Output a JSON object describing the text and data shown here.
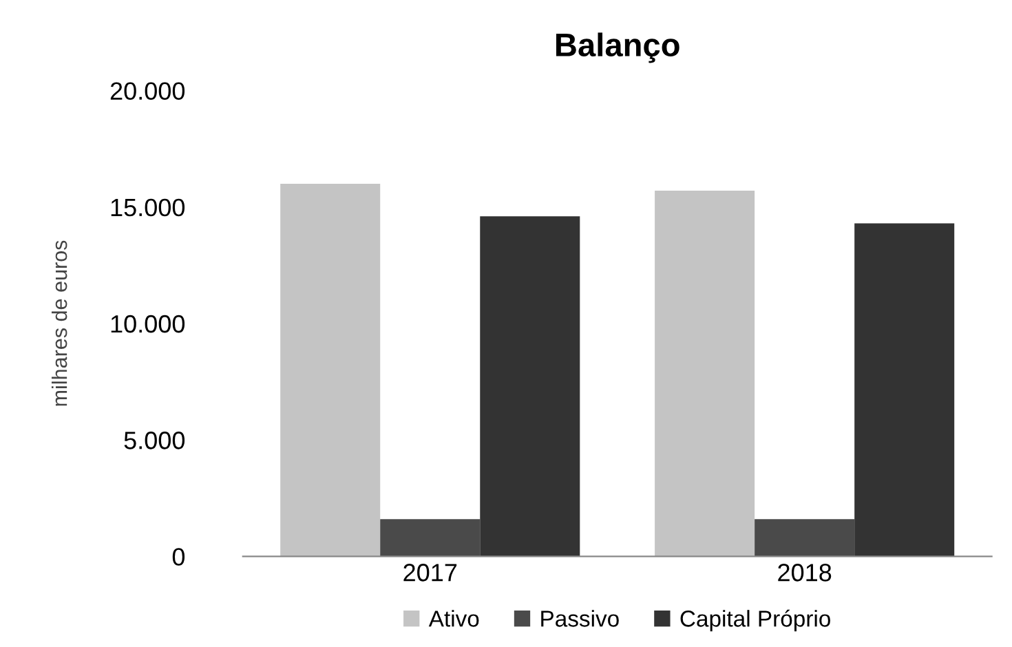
{
  "chart_data": {
    "type": "bar",
    "title": "Balanço",
    "ylabel": "milhares de euros",
    "categories": [
      "2017",
      "2018"
    ],
    "series": [
      {
        "name": "Ativo",
        "color": "#c4c4c4",
        "values": [
          16000,
          15700
        ]
      },
      {
        "name": "Passivo",
        "color": "#4a4a4a",
        "values": [
          1600,
          1600
        ]
      },
      {
        "name": "Capital Próprio",
        "color": "#333333",
        "values": [
          14600,
          14300
        ]
      }
    ],
    "ylim": [
      0,
      20000
    ],
    "yticks": [
      {
        "value": 0,
        "label": "0"
      },
      {
        "value": 5000,
        "label": "5.000"
      },
      {
        "value": 10000,
        "label": "10.000"
      },
      {
        "value": 15000,
        "label": "15.000"
      },
      {
        "value": 20000,
        "label": "20.000"
      }
    ],
    "grid": false,
    "legend": "bottom"
  }
}
